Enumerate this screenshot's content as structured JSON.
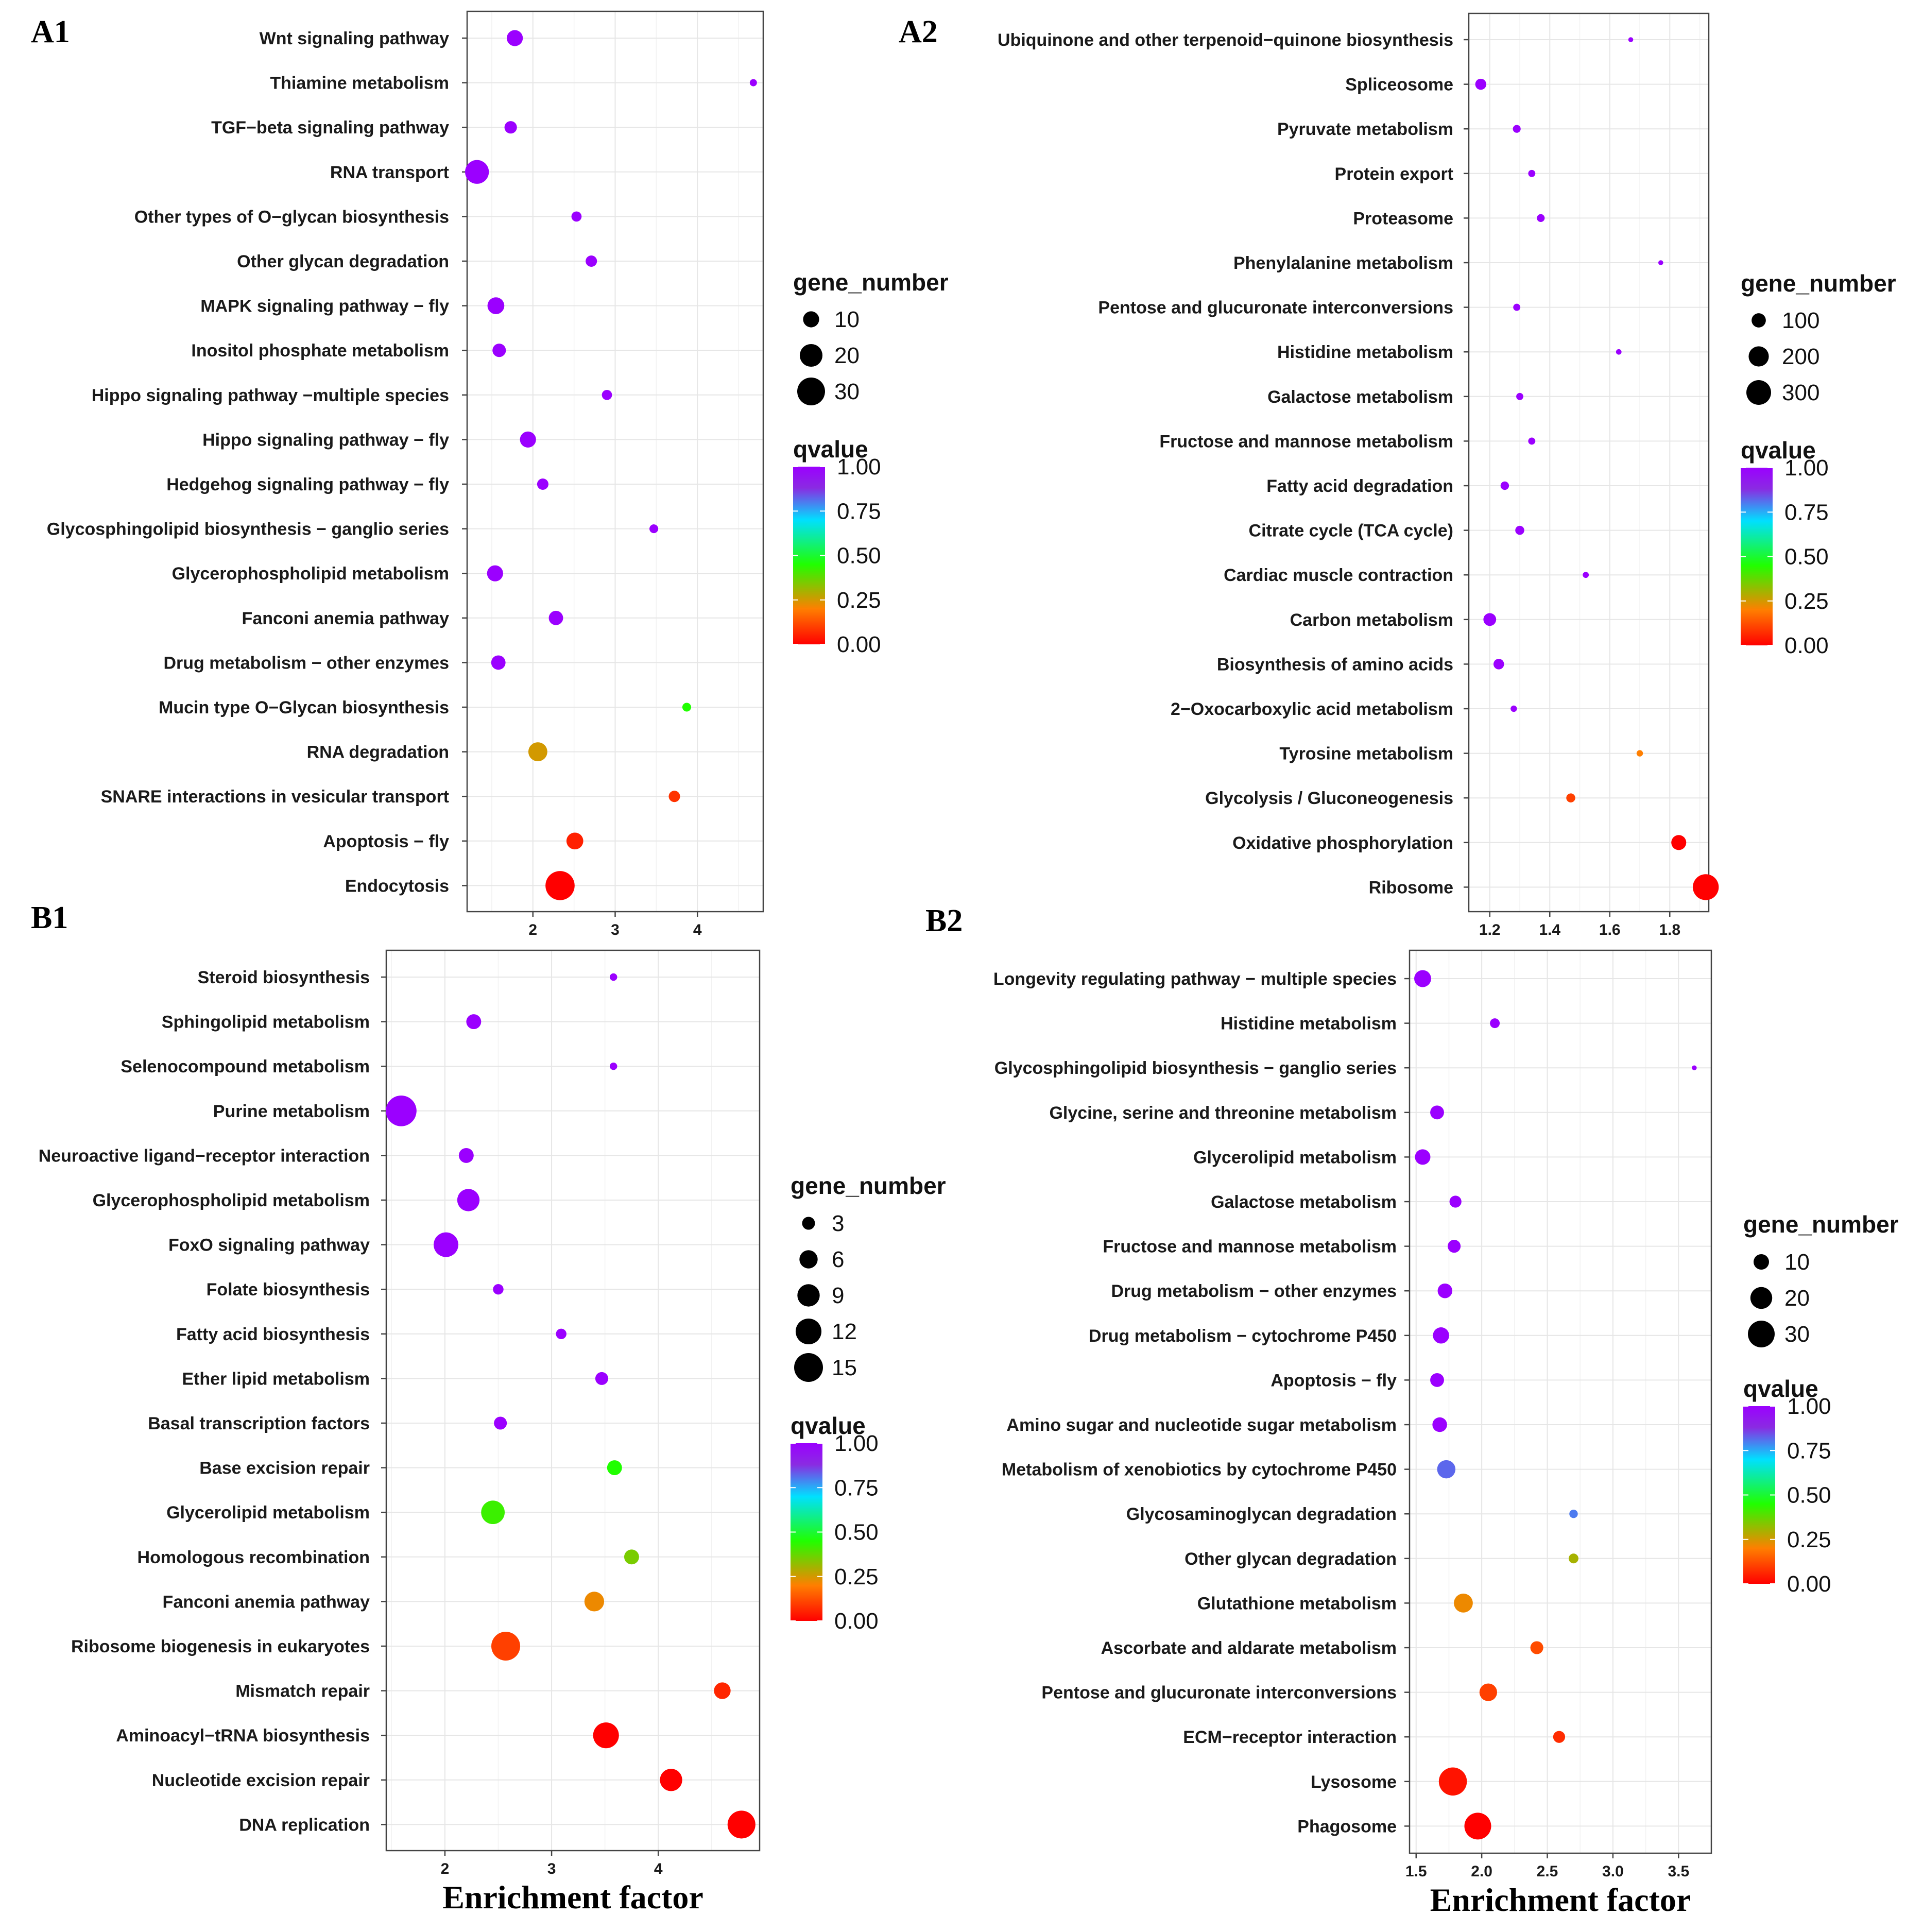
{
  "colors": {
    "scale": [
      "#ff0000",
      "#ff7f00",
      "#20ff00",
      "#00e0ff",
      "#8a2be2",
      "#9b00ff"
    ],
    "tick_mark": "#444444"
  },
  "x_axis_label": "Enrichment factor",
  "chart_data": [
    {
      "type": "scatter",
      "panel": "A1",
      "xlabel": "",
      "xlim": [
        1.2,
        4.8
      ],
      "xticks": [
        2,
        3,
        4
      ],
      "size_legend": {
        "title": "gene_number",
        "values": [
          10,
          20,
          30
        ],
        "max": 30
      },
      "color_legend": {
        "title": "qvalue",
        "ticks": [
          "1.00",
          "0.75",
          "0.50",
          "0.25",
          "0.00"
        ]
      },
      "points": [
        {
          "category": "Wnt signaling pathway",
          "x": 1.78,
          "q": 1.0,
          "n": 10
        },
        {
          "category": "Thiamine metabolism",
          "x": 4.68,
          "q": 1.0,
          "n": 2
        },
        {
          "category": "TGF−beta signaling pathway",
          "x": 1.73,
          "q": 1.0,
          "n": 6
        },
        {
          "category": "RNA transport",
          "x": 1.32,
          "q": 1.0,
          "n": 22
        },
        {
          "category": "Other types of O−glycan biosynthesis",
          "x": 2.53,
          "q": 1.0,
          "n": 4
        },
        {
          "category": "Other glycan degradation",
          "x": 2.71,
          "q": 1.0,
          "n": 5
        },
        {
          "category": "MAPK signaling pathway − fly",
          "x": 1.55,
          "q": 1.0,
          "n": 11
        },
        {
          "category": "Inositol phosphate metabolism",
          "x": 1.59,
          "q": 1.0,
          "n": 7
        },
        {
          "category": "Hippo signaling pathway −multiple species",
          "x": 2.9,
          "q": 1.0,
          "n": 4
        },
        {
          "category": "Hippo signaling pathway − fly",
          "x": 1.94,
          "q": 1.0,
          "n": 10
        },
        {
          "category": "Hedgehog signaling pathway − fly",
          "x": 2.12,
          "q": 1.0,
          "n": 5
        },
        {
          "category": "Glycosphingolipid biosynthesis − ganglio series",
          "x": 3.47,
          "q": 1.0,
          "n": 3
        },
        {
          "category": "Glycerophospholipid metabolism",
          "x": 1.54,
          "q": 1.0,
          "n": 10
        },
        {
          "category": "Fanconi anemia pathway",
          "x": 2.28,
          "q": 1.0,
          "n": 8
        },
        {
          "category": "Drug metabolism − other enzymes",
          "x": 1.58,
          "q": 1.0,
          "n": 8
        },
        {
          "category": "Mucin type O−Glycan biosynthesis",
          "x": 3.87,
          "q": 0.45,
          "n": 3
        },
        {
          "category": "RNA degradation",
          "x": 2.06,
          "q": 0.25,
          "n": 14
        },
        {
          "category": "SNARE interactions in vesicular transport",
          "x": 3.72,
          "q": 0.08,
          "n": 5
        },
        {
          "category": "Apoptosis − fly",
          "x": 2.51,
          "q": 0.05,
          "n": 11
        },
        {
          "category": "Endocytosis",
          "x": 2.33,
          "q": 0.0,
          "n": 33
        }
      ]
    },
    {
      "type": "scatter",
      "panel": "A2",
      "xlabel": "",
      "xlim": [
        1.13,
        1.93
      ],
      "xticks": [
        1.2,
        1.4,
        1.6,
        1.8
      ],
      "tick_labels": [
        "1.2",
        "1.4",
        "1.6",
        "1.8"
      ],
      "size_legend": {
        "title": "gene_number",
        "values": [
          100,
          200,
          300
        ],
        "max": 300
      },
      "color_legend": {
        "title": "qvalue",
        "ticks": [
          "1.00",
          "0.75",
          "0.50",
          "0.25",
          "0.00"
        ]
      },
      "points": [
        {
          "category": "Ubiquinone and other terpenoid−quinone biosynthesis",
          "x": 1.67,
          "q": 1.0,
          "n": 12
        },
        {
          "category": "Spliceosome",
          "x": 1.17,
          "q": 1.0,
          "n": 60
        },
        {
          "category": "Pyruvate metabolism",
          "x": 1.29,
          "q": 1.0,
          "n": 30
        },
        {
          "category": "Protein export",
          "x": 1.34,
          "q": 1.0,
          "n": 25
        },
        {
          "category": "Proteasome",
          "x": 1.37,
          "q": 1.0,
          "n": 30
        },
        {
          "category": "Phenylalanine metabolism",
          "x": 1.77,
          "q": 1.0,
          "n": 12
        },
        {
          "category": "Pentose and glucuronate interconversions",
          "x": 1.29,
          "q": 1.0,
          "n": 25
        },
        {
          "category": "Histidine metabolism",
          "x": 1.63,
          "q": 1.0,
          "n": 15
        },
        {
          "category": "Galactose metabolism",
          "x": 1.3,
          "q": 1.0,
          "n": 25
        },
        {
          "category": "Fructose and mannose metabolism",
          "x": 1.34,
          "q": 1.0,
          "n": 25
        },
        {
          "category": "Fatty acid degradation",
          "x": 1.25,
          "q": 1.0,
          "n": 35
        },
        {
          "category": "Citrate cycle (TCA cycle)",
          "x": 1.3,
          "q": 1.0,
          "n": 40
        },
        {
          "category": "Cardiac muscle contraction",
          "x": 1.52,
          "q": 1.0,
          "n": 18
        },
        {
          "category": "Carbon metabolism",
          "x": 1.2,
          "q": 1.0,
          "n": 80
        },
        {
          "category": "Biosynthesis of amino acids",
          "x": 1.23,
          "q": 1.0,
          "n": 55
        },
        {
          "category": "2−Oxocarboxylic acid metabolism",
          "x": 1.28,
          "q": 1.0,
          "n": 20
        },
        {
          "category": "Tyrosine metabolism",
          "x": 1.7,
          "q": 0.2,
          "n": 20
        },
        {
          "category": "Glycolysis / Gluconeogenesis",
          "x": 1.47,
          "q": 0.1,
          "n": 40
        },
        {
          "category": "Oxidative phosphorylation",
          "x": 1.83,
          "q": 0.0,
          "n": 110
        },
        {
          "category": "Ribosome",
          "x": 1.92,
          "q": 0.0,
          "n": 330
        }
      ]
    },
    {
      "type": "scatter",
      "panel": "B1",
      "xlabel": "Enrichment factor",
      "xlim": [
        1.45,
        4.95
      ],
      "xticks": [
        2,
        3,
        4
      ],
      "size_legend": {
        "title": "gene_number",
        "values": [
          3,
          6,
          9,
          12,
          15
        ],
        "max": 15
      },
      "color_legend": {
        "title": "qvalue",
        "ticks": [
          "1.00",
          "0.75",
          "0.50",
          "0.25",
          "0.00"
        ]
      },
      "points": [
        {
          "category": "Steroid biosynthesis",
          "x": 3.58,
          "q": 1.0,
          "n": 1
        },
        {
          "category": "Sphingolipid metabolism",
          "x": 2.27,
          "q": 1.0,
          "n": 4
        },
        {
          "category": "Selenocompound metabolism",
          "x": 3.58,
          "q": 1.0,
          "n": 1
        },
        {
          "category": "Purine metabolism",
          "x": 1.59,
          "q": 1.0,
          "n": 17
        },
        {
          "category": "Neuroactive ligand−receptor interaction",
          "x": 2.2,
          "q": 1.0,
          "n": 4
        },
        {
          "category": "Glycerophospholipid metabolism",
          "x": 2.22,
          "q": 1.0,
          "n": 9
        },
        {
          "category": "FoxO signaling pathway",
          "x": 2.01,
          "q": 1.0,
          "n": 11
        },
        {
          "category": "Folate biosynthesis",
          "x": 2.5,
          "q": 1.0,
          "n": 2
        },
        {
          "category": "Fatty acid biosynthesis",
          "x": 3.09,
          "q": 1.0,
          "n": 2
        },
        {
          "category": "Ether lipid metabolism",
          "x": 3.47,
          "q": 1.0,
          "n": 3
        },
        {
          "category": "Basal transcription factors",
          "x": 2.52,
          "q": 1.0,
          "n": 3
        },
        {
          "category": "Base excision repair",
          "x": 3.59,
          "q": 0.45,
          "n": 4
        },
        {
          "category": "Glycerolipid metabolism",
          "x": 2.45,
          "q": 0.42,
          "n": 10
        },
        {
          "category": "Homologous recombination",
          "x": 3.75,
          "q": 0.35,
          "n": 4
        },
        {
          "category": "Fanconi anemia pathway",
          "x": 3.4,
          "q": 0.22,
          "n": 7
        },
        {
          "category": "Ribosome biogenesis in eukaryotes",
          "x": 2.57,
          "q": 0.1,
          "n": 15
        },
        {
          "category": "Mismatch repair",
          "x": 4.6,
          "q": 0.06,
          "n": 5
        },
        {
          "category": "Aminoacyl−tRNA biosynthesis",
          "x": 3.51,
          "q": 0.0,
          "n": 12
        },
        {
          "category": "Nucleotide excision repair",
          "x": 4.12,
          "q": 0.0,
          "n": 9
        },
        {
          "category": "DNA replication",
          "x": 4.78,
          "q": 0.0,
          "n": 14
        }
      ]
    },
    {
      "type": "scatter",
      "panel": "B2",
      "xlabel": "Enrichment factor",
      "xlim": [
        1.45,
        3.75
      ],
      "xticks": [
        1.5,
        2.0,
        2.5,
        3.0,
        3.5
      ],
      "tick_labels": [
        "1.5",
        "2.0",
        "2.5",
        "3.0",
        "3.5"
      ],
      "size_legend": {
        "title": "gene_number",
        "values": [
          10,
          20,
          30
        ],
        "max": 30
      },
      "color_legend": {
        "title": "qvalue",
        "ticks": [
          "1.00",
          "0.75",
          "0.50",
          "0.25",
          "0.00"
        ]
      },
      "points": [
        {
          "category": "Longevity regulating pathway − multiple species",
          "x": 1.55,
          "q": 1.0,
          "n": 12
        },
        {
          "category": "Histidine metabolism",
          "x": 2.1,
          "q": 1.0,
          "n": 4
        },
        {
          "category": "Glycosphingolipid biosynthesis − ganglio series",
          "x": 3.62,
          "q": 1.0,
          "n": 1
        },
        {
          "category": "Glycine, serine and threonine metabolism",
          "x": 1.66,
          "q": 1.0,
          "n": 8
        },
        {
          "category": "Glycerolipid metabolism",
          "x": 1.55,
          "q": 1.0,
          "n": 10
        },
        {
          "category": "Galactose metabolism",
          "x": 1.8,
          "q": 1.0,
          "n": 6
        },
        {
          "category": "Fructose and mannose metabolism",
          "x": 1.79,
          "q": 1.0,
          "n": 7
        },
        {
          "category": "Drug metabolism − other enzymes",
          "x": 1.72,
          "q": 1.0,
          "n": 9
        },
        {
          "category": "Drug metabolism − cytochrome P450",
          "x": 1.69,
          "q": 1.0,
          "n": 11
        },
        {
          "category": "Apoptosis − fly",
          "x": 1.66,
          "q": 1.0,
          "n": 8
        },
        {
          "category": "Amino sugar and nucleotide sugar metabolism",
          "x": 1.68,
          "q": 1.0,
          "n": 9
        },
        {
          "category": "Metabolism of xenobiotics by cytochrome P450",
          "x": 1.73,
          "q": 0.82,
          "n": 14
        },
        {
          "category": "Glycosaminoglycan degradation",
          "x": 2.7,
          "q": 0.8,
          "n": 3
        },
        {
          "category": "Other glycan degradation",
          "x": 2.7,
          "q": 0.3,
          "n": 4
        },
        {
          "category": "Glutathione metabolism",
          "x": 1.86,
          "q": 0.22,
          "n": 15
        },
        {
          "category": "Ascorbate and aldarate metabolism",
          "x": 2.42,
          "q": 0.12,
          "n": 7
        },
        {
          "category": "Pentose and glucuronate interconversions",
          "x": 2.05,
          "q": 0.1,
          "n": 13
        },
        {
          "category": "ECM−receptor interaction",
          "x": 2.59,
          "q": 0.07,
          "n": 6
        },
        {
          "category": "Lysosome",
          "x": 1.78,
          "q": 0.03,
          "n": 33
        },
        {
          "category": "Phagosome",
          "x": 1.97,
          "q": 0.0,
          "n": 30
        }
      ]
    }
  ]
}
